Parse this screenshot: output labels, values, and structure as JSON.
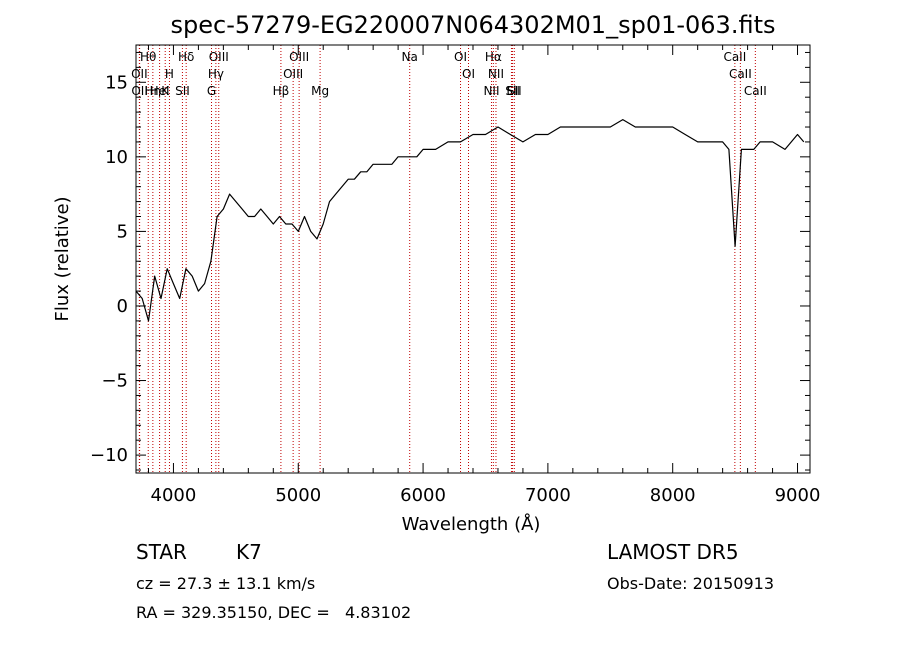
{
  "chart_data": {
    "type": "line",
    "title": "spec-57279-EG220007N064302M01_sp01-063.fits",
    "xlabel": "Wavelength (Å)",
    "ylabel": "Flux (relative)",
    "xlim": [
      3700,
      9100
    ],
    "ylim": [
      -11.2,
      17.5
    ],
    "xticks": [
      4000,
      5000,
      6000,
      7000,
      8000,
      9000
    ],
    "yticks": [
      -10,
      -5,
      0,
      5,
      10,
      15
    ],
    "grid": false,
    "series": [
      {
        "color": "#000000",
        "x": [
          3700,
          3750,
          3800,
          3850,
          3900,
          3950,
          4000,
          4050,
          4100,
          4150,
          4200,
          4250,
          4300,
          4350,
          4400,
          4450,
          4500,
          4550,
          4600,
          4650,
          4700,
          4750,
          4800,
          4850,
          4900,
          4950,
          5000,
          5050,
          5100,
          5150,
          5200,
          5250,
          5300,
          5350,
          5400,
          5450,
          5500,
          5550,
          5600,
          5650,
          5700,
          5750,
          5800,
          5850,
          5900,
          5950,
          6000,
          6100,
          6200,
          6300,
          6400,
          6500,
          6600,
          6700,
          6800,
          6900,
          7000,
          7100,
          7200,
          7300,
          7400,
          7500,
          7600,
          7700,
          7800,
          7900,
          8000,
          8100,
          8200,
          8300,
          8400,
          8450,
          8500,
          8550,
          8600,
          8650,
          8700,
          8800,
          8900,
          8950,
          9000,
          9050
        ],
        "y": [
          1.0,
          0.5,
          -1.0,
          2.0,
          0.5,
          2.5,
          1.5,
          0.5,
          2.5,
          2.0,
          1.0,
          1.5,
          3.0,
          6.0,
          6.5,
          7.5,
          7.0,
          6.5,
          6.0,
          6.0,
          6.5,
          6.0,
          5.5,
          6.0,
          5.5,
          5.5,
          5.0,
          6.0,
          5.0,
          4.5,
          5.5,
          7.0,
          7.5,
          8.0,
          8.5,
          8.5,
          9.0,
          9.0,
          9.5,
          9.5,
          9.5,
          9.5,
          10.0,
          10.0,
          10.0,
          10.0,
          10.5,
          10.5,
          11.0,
          11.0,
          11.5,
          11.5,
          12.0,
          11.5,
          11.0,
          11.5,
          11.5,
          12.0,
          12.0,
          12.0,
          12.0,
          12.0,
          12.5,
          12.0,
          12.0,
          12.0,
          12.0,
          11.5,
          11.0,
          11.0,
          11.0,
          10.5,
          4.0,
          10.5,
          10.5,
          10.5,
          11.0,
          11.0,
          10.5,
          11.0,
          11.5,
          11.0
        ]
      }
    ],
    "line_marks": [
      {
        "label": "Hθ",
        "x": 3798
      },
      {
        "label": "OII",
        "x": 3727
      },
      {
        "label": "OII",
        "x": 3729
      },
      {
        "label": "Hη",
        "x": 3835
      },
      {
        "label": "K",
        "x": 3934
      },
      {
        "label": "HeI",
        "x": 3889
      },
      {
        "label": "H",
        "x": 3968
      },
      {
        "label": "Hδ",
        "x": 4102
      },
      {
        "label": "SII",
        "x": 4072
      },
      {
        "label": "OIII",
        "x": 4363
      },
      {
        "label": "Hγ",
        "x": 4340
      },
      {
        "label": "G",
        "x": 4305
      },
      {
        "label": "OIII",
        "x": 5007
      },
      {
        "label": "OIII",
        "x": 4959
      },
      {
        "label": "Hβ",
        "x": 4861
      },
      {
        "label": "Mg",
        "x": 5175
      },
      {
        "label": "Na",
        "x": 5893
      },
      {
        "label": "OI",
        "x": 6300
      },
      {
        "label": "OI",
        "x": 6364
      },
      {
        "label": "Hα",
        "x": 6563
      },
      {
        "label": "NII",
        "x": 6548
      },
      {
        "label": "NII",
        "x": 6584
      },
      {
        "label": "SII",
        "x": 6717
      },
      {
        "label": "Li",
        "x": 6708
      },
      {
        "label": "SII",
        "x": 6731
      },
      {
        "label": "CaII",
        "x": 8498
      },
      {
        "label": "CaII",
        "x": 8542
      },
      {
        "label": "CaII",
        "x": 8662
      }
    ]
  },
  "footer": {
    "class_label": "STAR",
    "subclass": "K7",
    "survey": "LAMOST DR5",
    "cz": "cz = 27.3 ± 13.1 km/s",
    "obs_date": "Obs-Date: 20150913",
    "coords": "RA = 329.35150, DEC =   4.83102"
  }
}
